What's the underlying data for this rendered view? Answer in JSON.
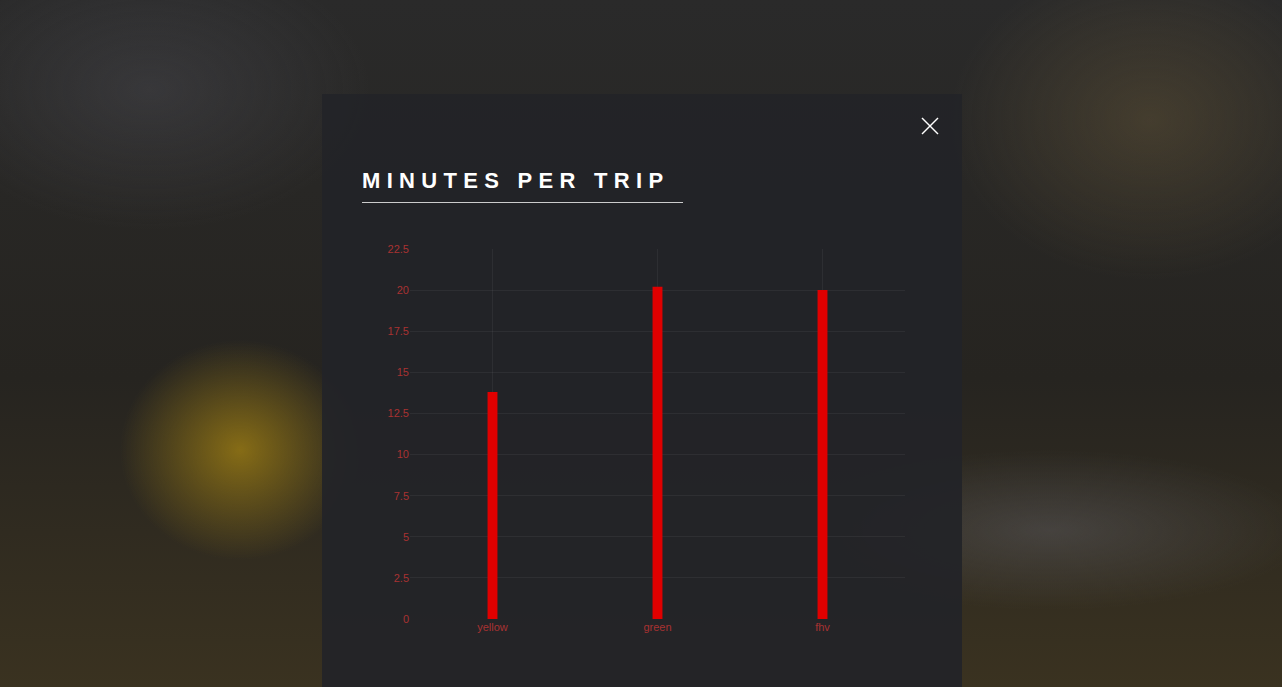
{
  "chart_data": {
    "type": "bar",
    "title": "MINUTES PER TRIP",
    "categories": [
      "yellow",
      "green",
      "fhv"
    ],
    "values": [
      13.8,
      20.2,
      20.0
    ],
    "color": "#e00000",
    "ylim": [
      0,
      22.5
    ],
    "yticks": [
      0,
      2.5,
      5,
      7.5,
      10,
      12.5,
      15,
      17.5,
      20,
      22.5
    ],
    "grid": true
  }
}
